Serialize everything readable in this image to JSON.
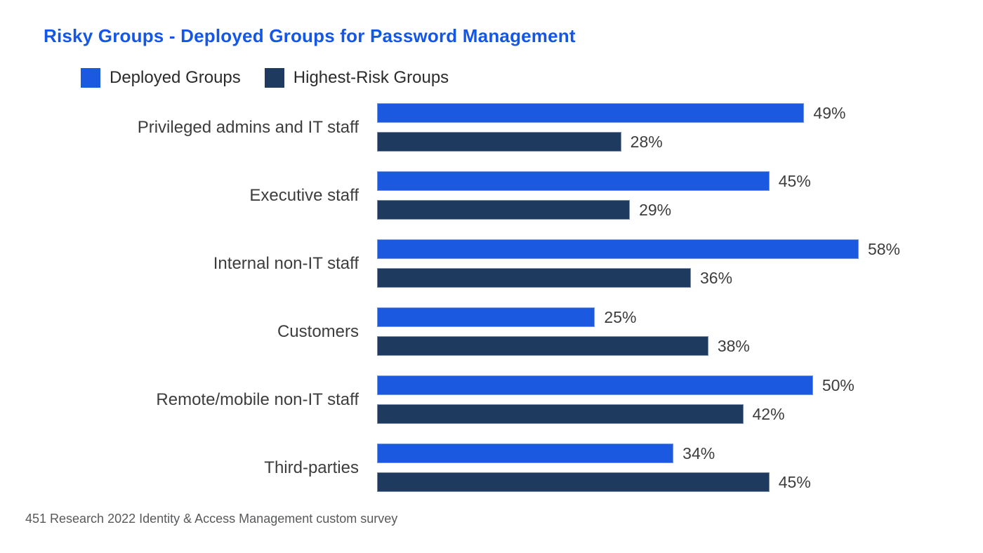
{
  "page": {
    "source": "451 Research 2022 Identity & Access Management custom survey"
  },
  "colors": {
    "title": "#1356E8",
    "deployed": "#1B5AE0",
    "risk": "#1E3A5F",
    "category_text": "#3d3d3d",
    "source_text": "#58595B",
    "background": "#FFFFFF"
  },
  "chart_data": {
    "type": "bar",
    "orientation": "horizontal",
    "title": "Risky Groups - Deployed Groups for Password Management",
    "categories": [
      "Privileged admins and IT staff",
      "Executive staff",
      "Internal non-IT staff",
      "Customers",
      "Remote/mobile non-IT staff",
      "Third-parties"
    ],
    "series": [
      {
        "name": "Deployed Groups",
        "color": "#1B5AE0",
        "values": [
          49,
          45,
          58,
          25,
          50,
          34
        ]
      },
      {
        "name": "Highest-Risk Groups",
        "color": "#1E3A5F",
        "values": [
          28,
          29,
          36,
          38,
          42,
          45
        ]
      }
    ],
    "value_suffix": "%",
    "xlim": [
      0,
      60
    ],
    "grid": false,
    "axes_visible": false,
    "data_labels": true,
    "legend_position": "top-left",
    "source_note": "451 Research 2022 Identity & Access Management custom survey"
  }
}
